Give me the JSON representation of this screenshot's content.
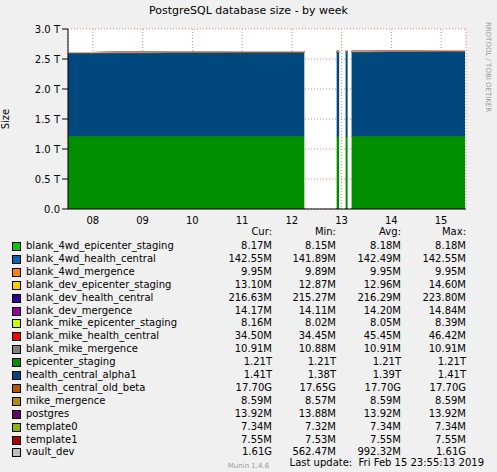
{
  "chart_data": {
    "type": "area",
    "title": "PostgreSQL database size - by week",
    "y_label": "Size",
    "side_text": "RRDTOOL / TOBI OETIKER",
    "footer": "Last update:  Fri Feb 15 23:55:13 2019",
    "version": "Munin 1.4.6",
    "stacked": true,
    "grid": true,
    "stats_columns": [
      "Cur:",
      "Min:",
      "Avg:",
      "Max:"
    ],
    "x": [
      8.0,
      8.5,
      9.0,
      9.5,
      10.0,
      10.5,
      11.0,
      11.5,
      12.0,
      12.5,
      12.75,
      12.8,
      13.4,
      13.45,
      13.5,
      13.58,
      13.62,
      13.66,
      13.7,
      14.0,
      14.5,
      15.0,
      15.5,
      15.98
    ],
    "xlim": [
      8,
      16
    ],
    "xticks": [
      {
        "value": 8.5,
        "label": "08"
      },
      {
        "value": 9.5,
        "label": "09"
      },
      {
        "value": 10.5,
        "label": "10"
      },
      {
        "value": 11.5,
        "label": "11"
      },
      {
        "value": 12.5,
        "label": "12"
      },
      {
        "value": 13.5,
        "label": "13"
      },
      {
        "value": 14.5,
        "label": "14"
      },
      {
        "value": 15.5,
        "label": "15"
      }
    ],
    "ylim": [
      0,
      3.0
    ],
    "yticks": [
      {
        "value": 0,
        "label": "0.0"
      },
      {
        "value": 0.5,
        "label": "0.5 T"
      },
      {
        "value": 1.0,
        "label": "1.0 T"
      },
      {
        "value": 1.5,
        "label": "1.5 T"
      },
      {
        "value": 2.0,
        "label": "2.0 T"
      },
      {
        "value": 2.5,
        "label": "2.5 T"
      },
      {
        "value": 3.0,
        "label": "3.0 T"
      }
    ],
    "series": [
      {
        "name": "blank_4wd_epicenter_staging",
        "color": "#00CC00",
        "stats": [
          "8.17M",
          "8.15M",
          "8.18M",
          "8.18M"
        ],
        "values": [
          8.17e-06,
          8.17e-06,
          8.17e-06,
          8.17e-06,
          8.17e-06,
          8.17e-06,
          8.17e-06,
          8.17e-06,
          8.17e-06,
          8.17e-06,
          8.17e-06,
          null,
          8.17e-06,
          8.17e-06,
          null,
          8.17e-06,
          8.17e-06,
          null,
          8.17e-06,
          8.17e-06,
          8.17e-06,
          8.17e-06,
          8.17e-06,
          8.17e-06
        ]
      },
      {
        "name": "blank_4wd_health_central",
        "color": "#0066B3",
        "stats": [
          "142.55M",
          "141.89M",
          "142.49M",
          "142.55M"
        ],
        "values": [
          0.00014189,
          0.0001425,
          0.0001425,
          0.0001425,
          0.0001425,
          0.0001425,
          0.0001425,
          0.0001425,
          0.0001425,
          0.0001425,
          0.0001425,
          null,
          0.0001425,
          0.0001425,
          null,
          0.0001425,
          0.0001425,
          null,
          0.0001425,
          0.0001425,
          0.0001425,
          0.00014255,
          0.00014255,
          0.00014255
        ]
      },
      {
        "name": "blank_4wd_mergence",
        "color": "#FF8000",
        "stats": [
          "9.95M",
          "9.89M",
          "9.95M",
          "9.95M"
        ],
        "values": [
          9.95e-06,
          9.95e-06,
          9.95e-06,
          9.95e-06,
          9.95e-06,
          9.95e-06,
          9.95e-06,
          9.95e-06,
          9.95e-06,
          9.95e-06,
          9.95e-06,
          null,
          9.95e-06,
          9.95e-06,
          null,
          9.95e-06,
          9.95e-06,
          null,
          9.95e-06,
          9.95e-06,
          9.95e-06,
          9.95e-06,
          9.95e-06,
          9.95e-06
        ]
      },
      {
        "name": "blank_dev_epicenter_staging",
        "color": "#FFCC00",
        "stats": [
          "13.10M",
          "12.87M",
          "12.96M",
          "14.60M"
        ],
        "values": [
          1.29e-05,
          1.29e-05,
          1.29e-05,
          1.29e-05,
          1.29e-05,
          1.29e-05,
          1.29e-05,
          1.29e-05,
          1.29e-05,
          1.29e-05,
          1.29e-05,
          null,
          1.29e-05,
          1.29e-05,
          null,
          1.29e-05,
          1.29e-05,
          null,
          1.29e-05,
          1.29e-05,
          1.29e-05,
          1.29e-05,
          1.29e-05,
          1.31e-05
        ]
      },
      {
        "name": "blank_dev_health_central",
        "color": "#330099",
        "stats": [
          "216.63M",
          "215.27M",
          "216.29M",
          "223.80M"
        ],
        "values": [
          0.0002163,
          0.0002163,
          0.0002163,
          0.0002163,
          0.0002163,
          0.0002163,
          0.0002163,
          0.0002163,
          0.0002163,
          0.0002163,
          0.0002163,
          null,
          0.0002163,
          0.0002163,
          null,
          0.0002163,
          0.0002163,
          null,
          0.0002163,
          0.0002163,
          0.0002163,
          0.0002163,
          0.0002163,
          0.00021663
        ]
      },
      {
        "name": "blank_dev_mergence",
        "color": "#990099",
        "stats": [
          "14.17M",
          "14.11M",
          "14.20M",
          "14.84M"
        ],
        "values": [
          1.42e-05,
          1.42e-05,
          1.42e-05,
          1.42e-05,
          1.42e-05,
          1.42e-05,
          1.42e-05,
          1.42e-05,
          1.42e-05,
          1.42e-05,
          1.42e-05,
          null,
          1.42e-05,
          1.42e-05,
          null,
          1.42e-05,
          1.42e-05,
          null,
          1.42e-05,
          1.42e-05,
          1.42e-05,
          1.42e-05,
          1.42e-05,
          1.417e-05
        ]
      },
      {
        "name": "blank_mike_epicenter_staging",
        "color": "#CCFF00",
        "stats": [
          "8.16M",
          "8.02M",
          "8.05M",
          "8.39M"
        ],
        "values": [
          8.05e-06,
          8.05e-06,
          8.05e-06,
          8.05e-06,
          8.05e-06,
          8.05e-06,
          8.05e-06,
          8.05e-06,
          8.05e-06,
          8.05e-06,
          8.05e-06,
          null,
          8.05e-06,
          8.05e-06,
          null,
          8.05e-06,
          8.05e-06,
          null,
          8.05e-06,
          8.05e-06,
          8.05e-06,
          8.05e-06,
          8.05e-06,
          8.16e-06
        ]
      },
      {
        "name": "blank_mike_health_central",
        "color": "#FF0000",
        "stats": [
          "34.50M",
          "34.45M",
          "45.45M",
          "46.42M"
        ],
        "values": [
          4.64e-05,
          4.64e-05,
          4.64e-05,
          4.64e-05,
          4.64e-05,
          4.64e-05,
          4.64e-05,
          4.64e-05,
          4.64e-05,
          4.64e-05,
          4.64e-05,
          null,
          4.64e-05,
          4.64e-05,
          null,
          4.64e-05,
          4.64e-05,
          null,
          4.64e-05,
          4.64e-05,
          4.64e-05,
          4.64e-05,
          4.64e-05,
          3.45e-05
        ]
      },
      {
        "name": "blank_mike_mergence",
        "color": "#808080",
        "stats": [
          "10.91M",
          "10.88M",
          "10.91M",
          "10.91M"
        ],
        "values": [
          1.091e-05,
          1.091e-05,
          1.091e-05,
          1.091e-05,
          1.091e-05,
          1.091e-05,
          1.091e-05,
          1.091e-05,
          1.091e-05,
          1.091e-05,
          1.091e-05,
          null,
          1.091e-05,
          1.091e-05,
          null,
          1.091e-05,
          1.091e-05,
          null,
          1.091e-05,
          1.091e-05,
          1.091e-05,
          1.091e-05,
          1.091e-05,
          1.091e-05
        ]
      },
      {
        "name": "epicenter_staging",
        "color": "#008F00",
        "stats": [
          "1.21T",
          "1.21T",
          "1.21T",
          "1.21T"
        ],
        "values": [
          1.21,
          1.21,
          1.21,
          1.21,
          1.21,
          1.21,
          1.21,
          1.21,
          1.21,
          1.21,
          1.21,
          null,
          1.21,
          1.21,
          null,
          1.21,
          1.21,
          null,
          1.21,
          1.21,
          1.21,
          1.21,
          1.21,
          1.21
        ]
      },
      {
        "name": "health_central_alpha1",
        "color": "#00487D",
        "stats": [
          "1.41T",
          "1.38T",
          "1.39T",
          "1.41T"
        ],
        "values": [
          1.38,
          1.38,
          1.385,
          1.385,
          1.39,
          1.39,
          1.39,
          1.395,
          1.395,
          1.395,
          1.395,
          null,
          1.4,
          1.4,
          null,
          1.4,
          1.4,
          null,
          1.4,
          1.4,
          1.405,
          1.405,
          1.41,
          1.41
        ]
      },
      {
        "name": "health_central_old_beta",
        "color": "#B35A00",
        "stats": [
          "17.70G",
          "17.65G",
          "17.70G",
          "17.70G"
        ],
        "values": [
          0.0177,
          0.0177,
          0.0177,
          0.0177,
          0.0177,
          0.0177,
          0.0177,
          0.0177,
          0.0177,
          0.0177,
          0.0177,
          null,
          0.0177,
          0.0177,
          null,
          0.0177,
          0.0177,
          null,
          0.0177,
          0.0177,
          0.0177,
          0.0177,
          0.0177,
          0.0177
        ]
      },
      {
        "name": "mike_mergence",
        "color": "#B38F00",
        "stats": [
          "8.59M",
          "8.57M",
          "8.59M",
          "8.59M"
        ],
        "values": [
          8.59e-06,
          8.59e-06,
          8.59e-06,
          8.59e-06,
          8.59e-06,
          8.59e-06,
          8.59e-06,
          8.59e-06,
          8.59e-06,
          8.59e-06,
          8.59e-06,
          null,
          8.59e-06,
          8.59e-06,
          null,
          8.59e-06,
          8.59e-06,
          null,
          8.59e-06,
          8.59e-06,
          8.59e-06,
          8.59e-06,
          8.59e-06,
          8.59e-06
        ]
      },
      {
        "name": "postgres",
        "color": "#6B006B",
        "stats": [
          "13.92M",
          "13.88M",
          "13.92M",
          "13.92M"
        ],
        "values": [
          1.392e-05,
          1.392e-05,
          1.392e-05,
          1.392e-05,
          1.392e-05,
          1.392e-05,
          1.392e-05,
          1.392e-05,
          1.392e-05,
          1.392e-05,
          1.392e-05,
          null,
          1.392e-05,
          1.392e-05,
          null,
          1.392e-05,
          1.392e-05,
          null,
          1.392e-05,
          1.392e-05,
          1.392e-05,
          1.392e-05,
          1.392e-05,
          1.392e-05
        ]
      },
      {
        "name": "template0",
        "color": "#8FB300",
        "stats": [
          "7.34M",
          "7.32M",
          "7.34M",
          "7.34M"
        ],
        "values": [
          7.34e-06,
          7.34e-06,
          7.34e-06,
          7.34e-06,
          7.34e-06,
          7.34e-06,
          7.34e-06,
          7.34e-06,
          7.34e-06,
          7.34e-06,
          7.34e-06,
          null,
          7.34e-06,
          7.34e-06,
          null,
          7.34e-06,
          7.34e-06,
          null,
          7.34e-06,
          7.34e-06,
          7.34e-06,
          7.34e-06,
          7.34e-06,
          7.34e-06
        ]
      },
      {
        "name": "template1",
        "color": "#B30000",
        "stats": [
          "7.55M",
          "7.53M",
          "7.55M",
          "7.55M"
        ],
        "values": [
          7.55e-06,
          7.55e-06,
          7.55e-06,
          7.55e-06,
          7.55e-06,
          7.55e-06,
          7.55e-06,
          7.55e-06,
          7.55e-06,
          7.55e-06,
          7.55e-06,
          null,
          7.55e-06,
          7.55e-06,
          null,
          7.55e-06,
          7.55e-06,
          null,
          7.55e-06,
          7.55e-06,
          7.55e-06,
          7.55e-06,
          7.55e-06,
          7.55e-06
        ]
      },
      {
        "name": "vault_dev",
        "color": "#BEBEBE",
        "stats": [
          "1.61G",
          "562.47M",
          "992.32M",
          "1.61G"
        ],
        "values": [
          0.00056,
          0.0006,
          0.00065,
          0.0007,
          0.00075,
          0.0008,
          0.00085,
          0.0009,
          0.00095,
          0.001,
          0.00102,
          null,
          0.00108,
          0.00109,
          null,
          0.0011,
          0.00111,
          null,
          0.00112,
          0.0012,
          0.0013,
          0.0014,
          0.0015,
          0.00161
        ]
      }
    ]
  }
}
